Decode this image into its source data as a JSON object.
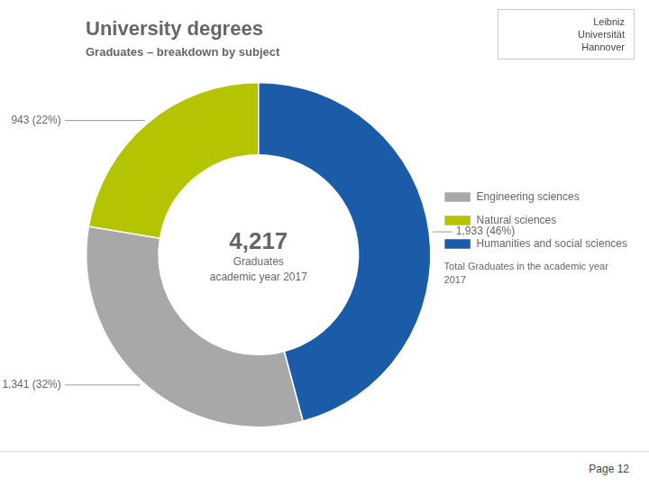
{
  "chart_data": {
    "type": "doughnut",
    "title": "University degrees",
    "subtitle": "Graduates – breakdown by subject",
    "categories": [
      "Engineering sciences",
      "Natural sciences",
      "Humanities and social sciences"
    ],
    "values": [
      1341,
      943,
      1933
    ],
    "value_labels": [
      "1,341 (32%)",
      "943 (22%)",
      "1,933 (46%)"
    ],
    "colors": [
      "#a8a8a8",
      "#b5c400",
      "#1a5ca8"
    ],
    "data_labels": true,
    "legend": "right",
    "center_text": [
      "4,217",
      "Graduates",
      "academic year 2017"
    ],
    "legend_footer": "Total Graduates in the academic year\n2017",
    "page": "Page 12",
    "logo_text": [
      "Leibniz",
      "Universität",
      "Hannover"
    ]
  }
}
